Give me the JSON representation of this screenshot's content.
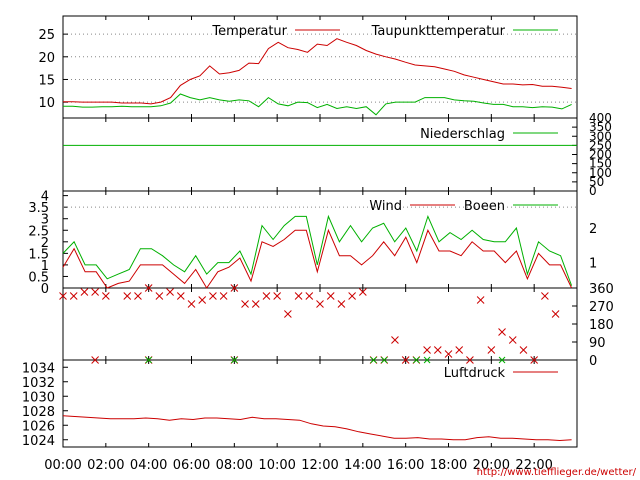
{
  "colors": {
    "red": "#cc0000",
    "green": "#00b000",
    "grid": "#888888",
    "link": "#cc0000"
  },
  "footer": {
    "url": "http://www.tiefflieger.de/wetter/"
  },
  "chart_data": [
    {
      "type": "line",
      "panel": "temperature",
      "ylim": [
        6.5,
        29
      ],
      "yticks": [
        "10",
        "15",
        "20",
        "25"
      ],
      "grid": true,
      "legend": "top-right",
      "x_start": "00:00",
      "x_end": "23:45",
      "x_step_minutes": 30,
      "series": [
        {
          "name": "Temperatur",
          "color": "red",
          "values": [
            10.1,
            10.1,
            10,
            10,
            10,
            10,
            9.8,
            9.8,
            9.8,
            9.6,
            10,
            11,
            13.7,
            15,
            15.8,
            18,
            16.2,
            16.5,
            17,
            18.6,
            18.5,
            21.8,
            23.2,
            22,
            21.6,
            21,
            22.8,
            22.5,
            24,
            23.2,
            22.5,
            21.4,
            20.6,
            20,
            19.5,
            18.8,
            18.2,
            18,
            17.8,
            17.3,
            16.8,
            16,
            15.5,
            15,
            14.5,
            14,
            14,
            13.8,
            13.9,
            13.5,
            13.5,
            13.3,
            13
          ]
        },
        {
          "name": "Taupunkttemperatur",
          "color": "green",
          "values": [
            9.1,
            9.1,
            8.9,
            8.9,
            9,
            9,
            9.1,
            9,
            9,
            9,
            9.2,
            9.8,
            11.8,
            11,
            10.5,
            11,
            10.5,
            10.2,
            10.5,
            10.3,
            9,
            11,
            9.6,
            9.2,
            10,
            9.9,
            8.8,
            9.5,
            8.6,
            9,
            8.6,
            9,
            7.2,
            9.6,
            10,
            10,
            10,
            11,
            11,
            11,
            10.5,
            10.3,
            10.2,
            9.8,
            9.5,
            9.5,
            9,
            9,
            8.8,
            9,
            8.9,
            8.5,
            9.5
          ]
        }
      ]
    },
    {
      "type": "line",
      "panel": "precipitation",
      "ylim": [
        0,
        400
      ],
      "yticks": [
        "0",
        "50",
        "100",
        "150",
        "200",
        "250",
        "300",
        "350",
        "400"
      ],
      "legend": "top-right",
      "series": [
        {
          "name": "Niederschlag",
          "color": "green",
          "values": [
            250,
            250
          ]
        }
      ]
    },
    {
      "type": "line",
      "panel": "wind",
      "ylim": [
        0,
        4.2
      ],
      "yticks": [
        "0",
        "0.5",
        "1",
        "1.5",
        "2",
        "2.5",
        "3",
        "3.5",
        "4"
      ],
      "yticks_right": [
        "1",
        "2"
      ],
      "legend": "top-right",
      "series": [
        {
          "name": "Wind",
          "color": "red",
          "values": [
            0.9,
            1.7,
            0.7,
            0.7,
            0,
            0.2,
            0.3,
            1,
            1,
            1,
            0.6,
            0.2,
            0.8,
            0,
            0.7,
            0.9,
            1.3,
            0.3,
            2,
            1.8,
            2.1,
            2.5,
            2.5,
            0.7,
            2.5,
            1.4,
            1.4,
            1,
            1.4,
            2,
            1.4,
            2.2,
            1.1,
            2.5,
            1.6,
            1.6,
            1.4,
            2,
            1.6,
            1.6,
            1.1,
            1.6,
            0.4,
            1.5,
            1,
            1,
            0
          ]
        },
        {
          "name": "Boeen",
          "color": "green",
          "values": [
            1.5,
            2,
            1,
            1,
            0.4,
            0.6,
            0.8,
            1.7,
            1.7,
            1.4,
            1,
            0.7,
            1.4,
            0.6,
            1.1,
            1.1,
            1.6,
            0.6,
            2.7,
            2.1,
            2.7,
            3.1,
            3.1,
            1,
            3.1,
            2,
            2.7,
            2,
            2.6,
            2.8,
            2,
            2.6,
            1.6,
            3.1,
            2,
            2.4,
            2.1,
            2.5,
            2.1,
            2,
            2,
            2.6,
            0.6,
            2,
            1.6,
            1.4,
            0.1
          ]
        }
      ]
    },
    {
      "type": "scatter",
      "panel": "wind_direction",
      "ylim": [
        0,
        360
      ],
      "yticks_right": [
        "0",
        "90",
        "180",
        "270",
        "360"
      ],
      "series": [
        {
          "name": "",
          "color": "red",
          "points": [
            [
              0,
              320
            ],
            [
              0.5,
              320
            ],
            [
              1,
              340
            ],
            [
              1.5,
              340
            ],
            [
              2,
              320
            ],
            [
              3,
              320
            ],
            [
              3.5,
              320
            ],
            [
              4,
              360
            ],
            [
              4.5,
              320
            ],
            [
              5,
              340
            ],
            [
              5.5,
              320
            ],
            [
              6,
              280
            ],
            [
              6.5,
              300
            ],
            [
              7,
              320
            ],
            [
              7.5,
              320
            ],
            [
              8,
              360
            ],
            [
              8.5,
              280
            ],
            [
              9,
              280
            ],
            [
              9.5,
              320
            ],
            [
              10,
              320
            ],
            [
              10.5,
              230
            ],
            [
              11,
              320
            ],
            [
              11.5,
              320
            ],
            [
              12,
              280
            ],
            [
              12.5,
              320
            ],
            [
              13,
              280
            ],
            [
              13.5,
              320
            ],
            [
              14,
              340
            ],
            [
              14.5,
              0
            ],
            [
              15,
              0
            ],
            [
              15.5,
              100
            ],
            [
              16,
              0
            ],
            [
              16.5,
              0
            ],
            [
              17,
              50
            ],
            [
              17.5,
              50
            ],
            [
              18,
              30
            ],
            [
              18.5,
              50
            ],
            [
              19,
              0
            ],
            [
              19.5,
              300
            ],
            [
              20,
              50
            ],
            [
              20.5,
              140
            ],
            [
              21,
              100
            ],
            [
              21.5,
              50
            ],
            [
              22,
              0
            ],
            [
              22.5,
              320
            ],
            [
              23,
              230
            ],
            [
              1.5,
              0
            ],
            [
              4,
              0
            ],
            [
              8,
              0
            ]
          ]
        }
      ]
    },
    {
      "type": "line",
      "panel": "pressure",
      "ylim": [
        1023,
        1035
      ],
      "yticks": [
        "1024",
        "1026",
        "1028",
        "1030",
        "1032",
        "1034"
      ],
      "legend": "top-right",
      "xticks": [
        "00:00",
        "02:00",
        "04:00",
        "06:00",
        "08:00",
        "10:00",
        "12:00",
        "14:00",
        "16:00",
        "18:00",
        "20:00",
        "22:00"
      ],
      "series": [
        {
          "name": "Luftdruck",
          "color": "red",
          "values": [
            1027.3,
            1027.2,
            1027.1,
            1027,
            1026.9,
            1026.9,
            1026.9,
            1027,
            1026.9,
            1026.7,
            1026.9,
            1026.8,
            1027,
            1027,
            1026.9,
            1026.8,
            1027.1,
            1026.9,
            1026.9,
            1026.8,
            1026.7,
            1026.2,
            1025.9,
            1025.8,
            1025.5,
            1025.1,
            1024.8,
            1024.5,
            1024.2,
            1024.2,
            1024.3,
            1024.1,
            1024.1,
            1024,
            1024,
            1024.3,
            1024.4,
            1024.2,
            1024.2,
            1024.1,
            1024,
            1024,
            1023.9,
            1024
          ]
        }
      ]
    }
  ]
}
